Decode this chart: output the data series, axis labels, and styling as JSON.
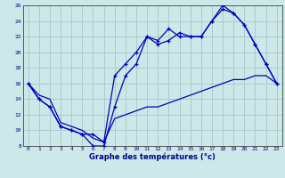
{
  "title": "Graphe des températures (°c)",
  "bg_color": "#cce8e8",
  "grid_color": "#aacccc",
  "line_color": "#0000bb",
  "xlim": [
    -0.5,
    23.5
  ],
  "ylim": [
    8,
    26
  ],
  "xticks": [
    0,
    1,
    2,
    3,
    4,
    5,
    6,
    7,
    8,
    9,
    10,
    11,
    12,
    13,
    14,
    15,
    16,
    17,
    18,
    19,
    20,
    21,
    22,
    23
  ],
  "yticks": [
    8,
    10,
    12,
    14,
    16,
    18,
    20,
    22,
    24,
    26
  ],
  "line1_x": [
    0,
    1,
    2,
    3,
    4,
    5,
    6,
    7,
    8,
    9,
    10,
    11,
    12,
    13,
    14,
    15,
    16,
    17,
    18,
    19,
    20,
    21,
    22,
    23
  ],
  "line1_y": [
    16,
    14,
    13,
    10.5,
    10,
    9.5,
    8,
    8,
    13,
    17,
    18.5,
    22,
    21,
    21.5,
    22.5,
    22,
    22,
    24,
    26,
    25,
    23.5,
    21,
    18.5,
    16
  ],
  "line2_x": [
    0,
    1,
    2,
    3,
    4,
    5,
    6,
    7,
    8,
    9,
    10,
    11,
    12,
    13,
    14,
    15,
    16,
    17,
    18,
    19,
    20,
    21,
    22,
    23
  ],
  "line2_y": [
    16,
    14,
    13,
    10.5,
    10,
    9.5,
    9.5,
    8.5,
    17,
    18.5,
    20,
    22,
    21.5,
    23,
    22,
    22,
    22,
    24,
    25.5,
    25,
    23.5,
    21,
    18.5,
    16
  ],
  "line3_x": [
    0,
    1,
    2,
    3,
    4,
    5,
    6,
    7,
    8,
    9,
    10,
    11,
    12,
    13,
    14,
    15,
    16,
    17,
    18,
    19,
    20,
    21,
    22,
    23
  ],
  "line3_y": [
    16,
    14.5,
    14,
    11,
    10.5,
    10,
    9,
    8.5,
    11.5,
    12,
    12.5,
    13,
    13,
    13.5,
    14,
    14.5,
    15,
    15.5,
    16,
    16.5,
    16.5,
    17,
    17,
    16
  ]
}
